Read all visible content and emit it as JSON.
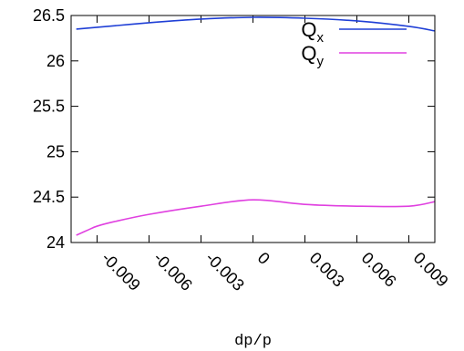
{
  "chart_data": {
    "type": "line",
    "xlabel": "dp/p",
    "ylabel": "",
    "xlim": [
      -0.0105,
      0.0105
    ],
    "ylim": [
      24,
      26.5
    ],
    "x_ticks": [
      -0.009,
      -0.006,
      -0.003,
      0,
      0.003,
      0.006,
      0.009
    ],
    "x_tick_labels": [
      "-0.009",
      "-0.006",
      "-0.003",
      "0",
      "0.003",
      "0.006",
      "0.009"
    ],
    "y_ticks": [
      24,
      24.5,
      25,
      25.5,
      26,
      26.5
    ],
    "y_tick_labels": [
      "24",
      "24.5",
      "25",
      "25.5",
      "26",
      "26.5"
    ],
    "legend_position": "top-right",
    "grid": false,
    "series": [
      {
        "name": "Qx",
        "name_main": "Q",
        "name_sub": "x",
        "color": "#1f3fd6",
        "x": [
          -0.0102,
          -0.009,
          -0.006,
          -0.003,
          0,
          0.003,
          0.006,
          0.009,
          0.0105
        ],
        "y": [
          26.35,
          26.37,
          26.42,
          26.46,
          26.48,
          26.47,
          26.44,
          26.38,
          26.33
        ]
      },
      {
        "name": "Qy",
        "name_main": "Q",
        "name_sub": "y",
        "color": "#e040e0",
        "x": [
          -0.0102,
          -0.0095,
          -0.009,
          -0.008,
          -0.006,
          -0.003,
          0,
          0.003,
          0.006,
          0.009,
          0.0105
        ],
        "y": [
          24.08,
          24.14,
          24.18,
          24.23,
          24.31,
          24.4,
          24.47,
          24.42,
          24.4,
          24.4,
          24.45
        ]
      }
    ]
  }
}
